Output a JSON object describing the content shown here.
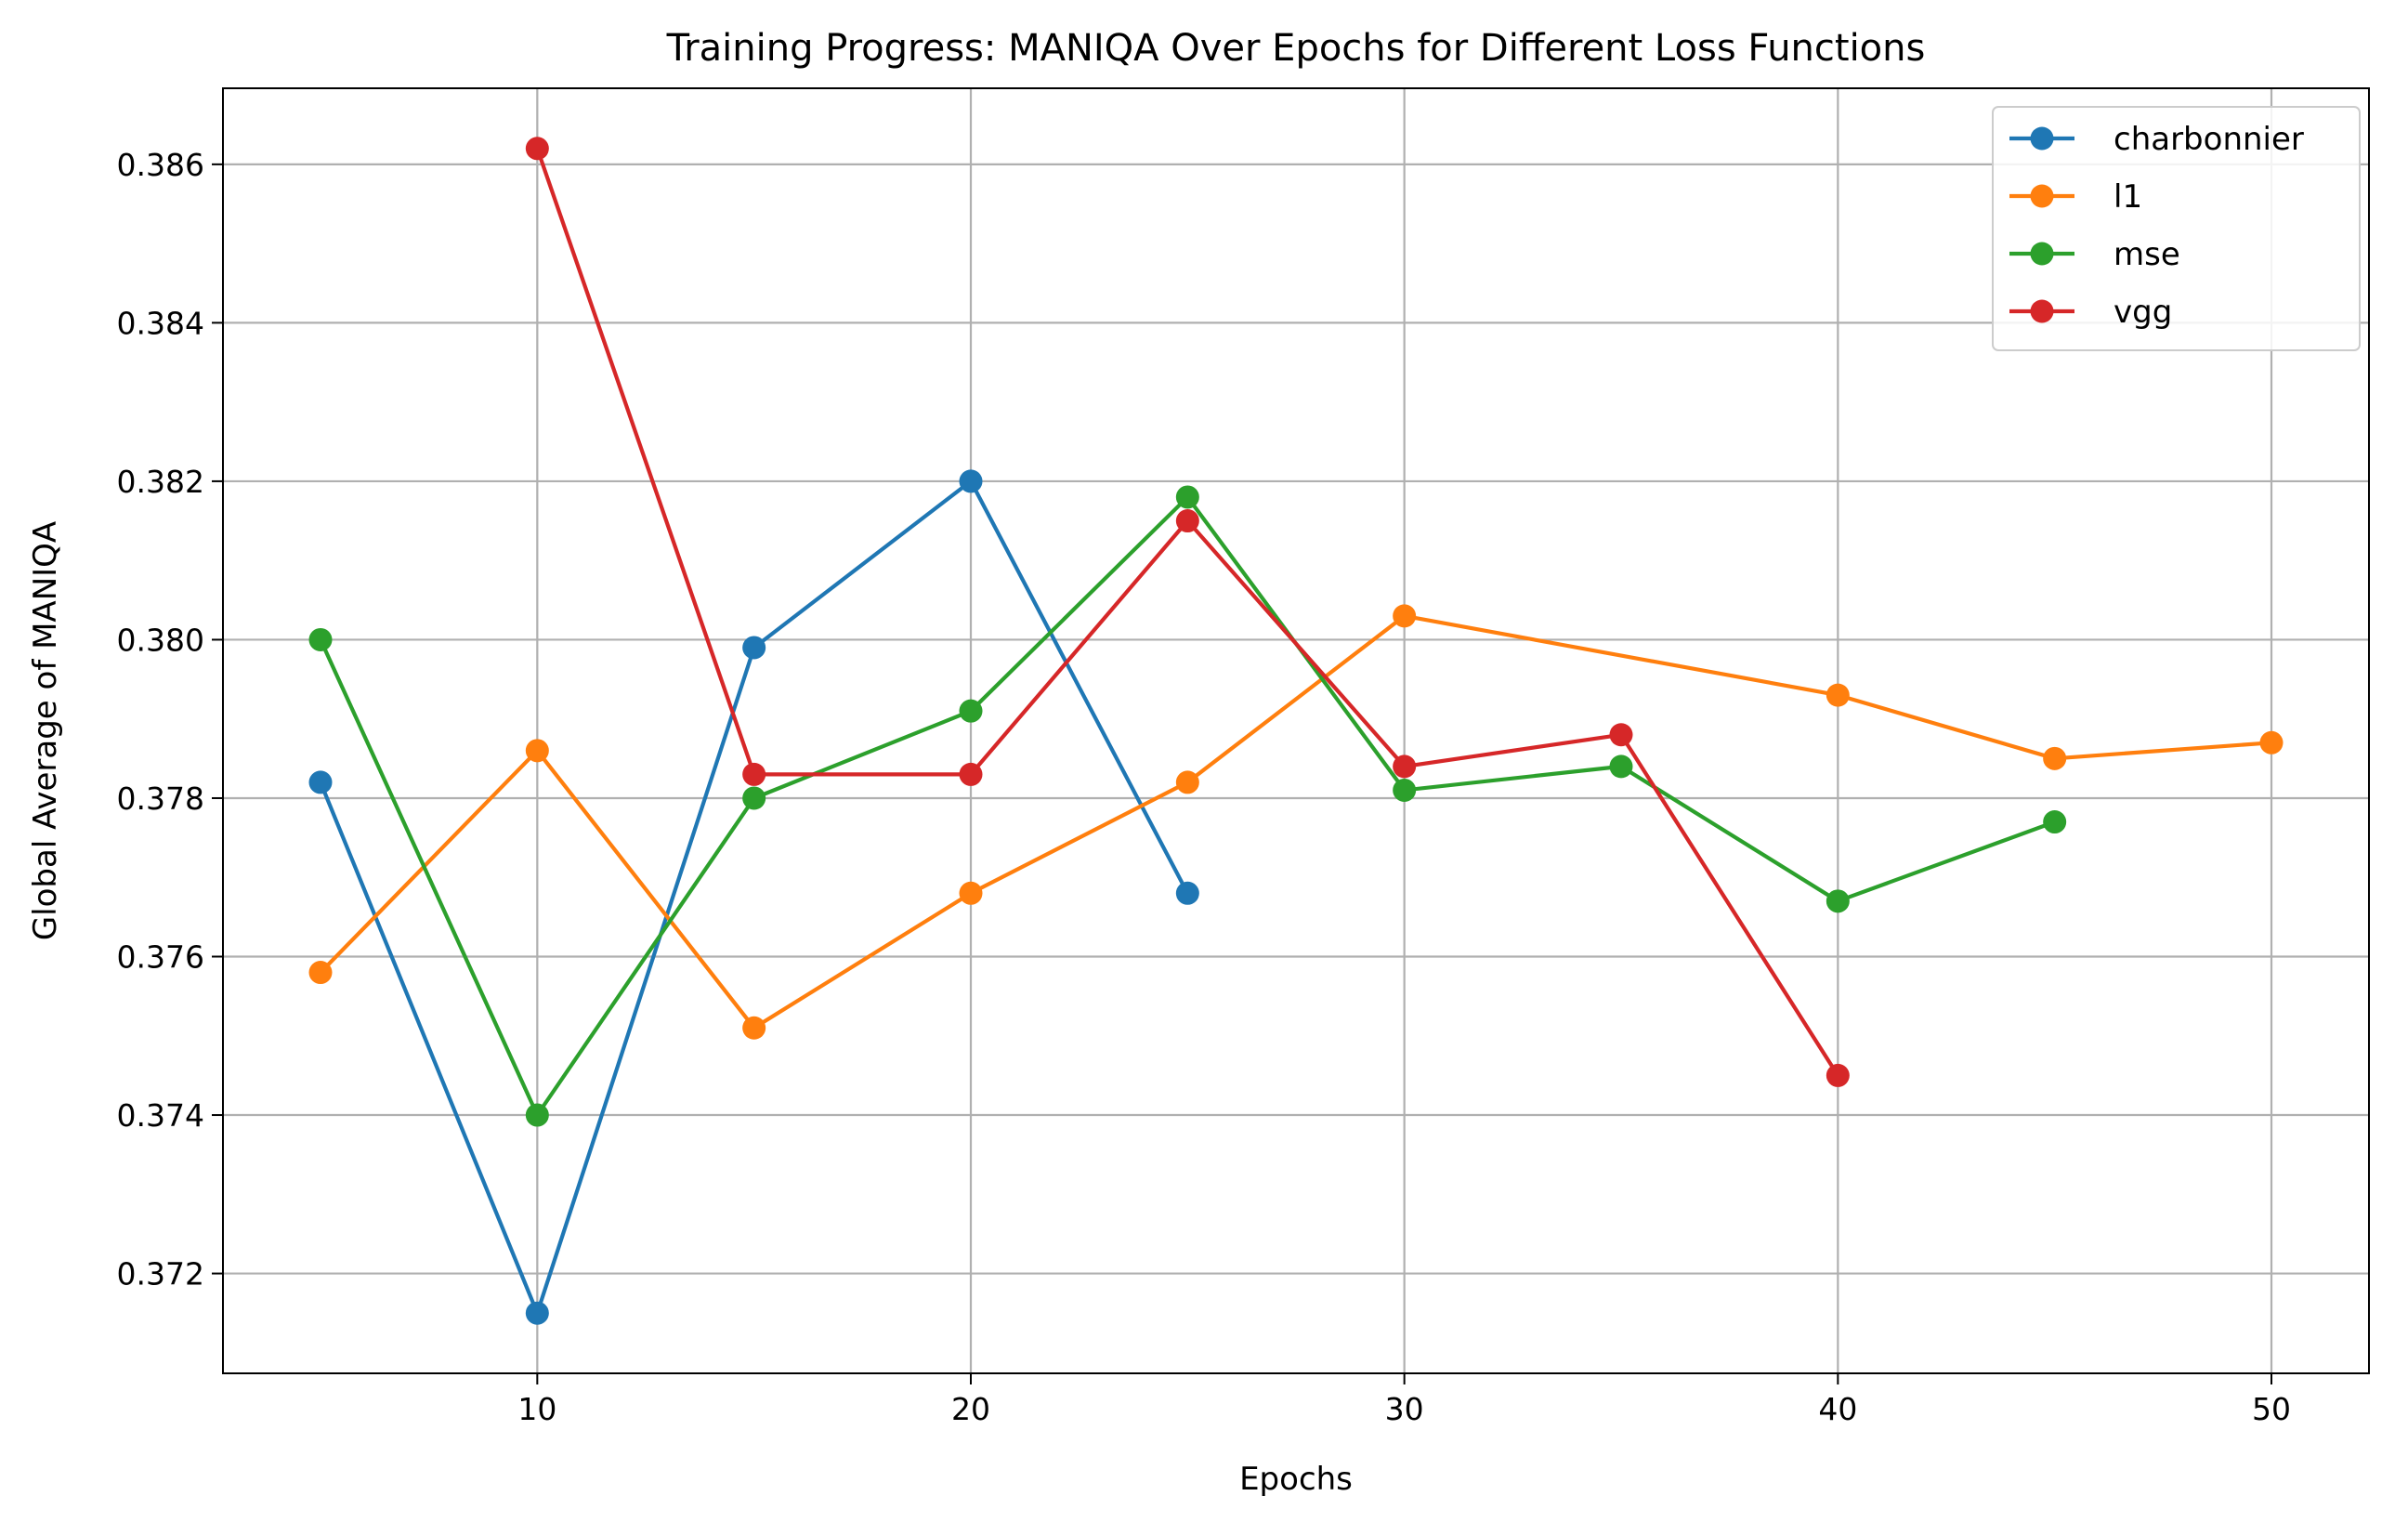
{
  "chart_data": {
    "type": "line",
    "title": "Training Progress: MANIQA Over Epochs for Different Loss Functions",
    "xlabel": "Epochs",
    "ylabel": "Global Average of MANIQA",
    "xlim": [
      2.75,
      52.25
    ],
    "ylim": [
      0.37074,
      0.38696
    ],
    "xticks": [
      10,
      20,
      30,
      40,
      50
    ],
    "xtick_labels": [
      "10",
      "20",
      "30",
      "40",
      "50"
    ],
    "yticks": [
      0.372,
      0.374,
      0.376,
      0.378,
      0.38,
      0.382,
      0.384,
      0.386
    ],
    "ytick_labels": [
      "0.372",
      "0.374",
      "0.376",
      "0.378",
      "0.380",
      "0.382",
      "0.384",
      "0.386"
    ],
    "grid": true,
    "legend_position": "top-right",
    "series": [
      {
        "name": "charbonnier",
        "color": "#1f77b4",
        "x": [
          5,
          10,
          15,
          20,
          25
        ],
        "values": [
          0.3782,
          0.3715,
          0.3799,
          0.382,
          0.3768
        ]
      },
      {
        "name": "l1",
        "color": "#ff7f0e",
        "x": [
          5,
          10,
          15,
          20,
          25,
          30,
          40,
          45,
          50
        ],
        "values": [
          0.3758,
          0.3786,
          0.3751,
          0.3768,
          0.3782,
          0.3803,
          0.3793,
          0.3785,
          0.3787
        ]
      },
      {
        "name": "mse",
        "color": "#2ca02c",
        "x": [
          5,
          10,
          15,
          20,
          25,
          30,
          35,
          40,
          45
        ],
        "values": [
          0.38,
          0.374,
          0.378,
          0.3791,
          0.3818,
          0.3781,
          0.3784,
          0.3767,
          0.3777
        ]
      },
      {
        "name": "vgg",
        "color": "#d62728",
        "x": [
          10,
          15,
          20,
          25,
          30,
          35,
          40
        ],
        "values": [
          0.3862,
          0.3783,
          0.3783,
          0.3815,
          0.3784,
          0.3788,
          0.3745
        ]
      }
    ]
  }
}
